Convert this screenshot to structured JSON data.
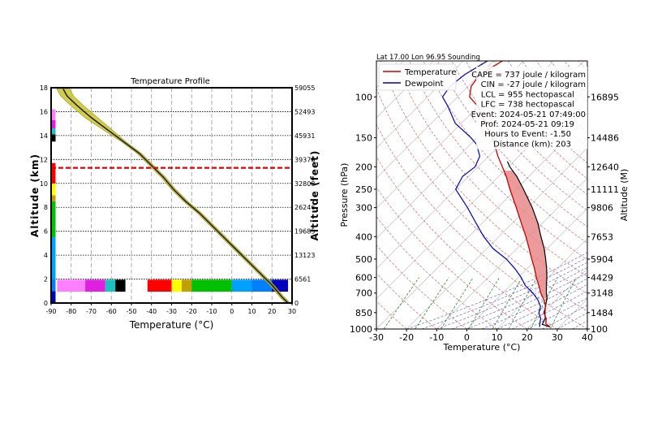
{
  "colors": {
    "temperature": "#cc0000",
    "dewpoint": "#0000cc",
    "cape_fill": "#e88a8a",
    "profile_spread": "#c8c020",
    "profile_line": "#222222",
    "tropopause": "#e00000"
  },
  "chart_data": [
    {
      "type": "line",
      "title": "Temperature Profile",
      "xlabel": "Temperature (°C)",
      "ylabel": "Altitude (km)",
      "y2label": "Altitude (feet)",
      "xlim": [
        -90,
        30
      ],
      "ylim": [
        0,
        18
      ],
      "xticks": [
        -90,
        -80,
        -70,
        -60,
        -50,
        -40,
        -30,
        -20,
        -10,
        0,
        10,
        20,
        30
      ],
      "yticks": [
        0,
        2,
        4,
        6,
        8,
        10,
        12,
        14,
        16,
        18
      ],
      "y2ticks": [
        {
          "km": 0,
          "label": "0"
        },
        {
          "km": 2,
          "label": "6561"
        },
        {
          "km": 4,
          "label": "13123"
        },
        {
          "km": 6,
          "label": "19685"
        },
        {
          "km": 8,
          "label": "26246"
        },
        {
          "km": 10,
          "label": "32808"
        },
        {
          "km": 12,
          "label": "39370"
        },
        {
          "km": 14,
          "label": "45931"
        },
        {
          "km": 16,
          "label": "52493"
        },
        {
          "km": 18,
          "label": "59055"
        }
      ],
      "grid": true,
      "tropopause_km": 11.3,
      "series": [
        {
          "x": [
            28,
            25,
            20,
            14,
            8,
            2,
            -4,
            -10,
            -16,
            -23,
            -29,
            -34,
            -40,
            -46,
            -54,
            -62,
            -70,
            -77,
            -82,
            -84
          ],
          "y": [
            0,
            0.5,
            1.5,
            2.5,
            3.5,
            4.5,
            5.5,
            6.5,
            7.5,
            8.5,
            9.5,
            10.5,
            11.5,
            12.5,
            13.5,
            14.5,
            15.5,
            16.5,
            17.3,
            17.9
          ]
        }
      ],
      "color_strip": [
        {
          "from": -87,
          "to": -73,
          "color": "#ff80ff"
        },
        {
          "from": -73,
          "to": -63,
          "color": "#e020e0"
        },
        {
          "from": -63,
          "to": -58,
          "color": "#20c0c0"
        },
        {
          "from": -58,
          "to": -53,
          "color": "#000000"
        },
        {
          "from": -42,
          "to": -30,
          "color": "#ff0000"
        },
        {
          "from": -30,
          "to": -25,
          "color": "#ffff00"
        },
        {
          "from": -25,
          "to": -20,
          "color": "#c0a000"
        },
        {
          "from": -20,
          "to": 0,
          "color": "#00c000"
        },
        {
          "from": 0,
          "to": 10,
          "color": "#00a0ff"
        },
        {
          "from": 10,
          "to": 20,
          "color": "#0080ff"
        },
        {
          "from": 20,
          "to": 28,
          "color": "#0000c0"
        }
      ]
    },
    {
      "type": "line",
      "title": "Lat 17.00 Lon 96.95 Sounding",
      "xlabel": "Temperature (°C)",
      "ylabel": "Pressure (hPa)",
      "y2label": "Altitude (M)",
      "log_scale_y": true,
      "xlim": [
        -30,
        40
      ],
      "ylim": [
        1000,
        70
      ],
      "xticks": [
        -30,
        -20,
        -10,
        0,
        10,
        20,
        30,
        40
      ],
      "yticks": [
        100,
        150,
        200,
        250,
        300,
        400,
        500,
        600,
        700,
        850,
        1000
      ],
      "y2ticks": [
        {
          "p": 100,
          "label": "16895"
        },
        {
          "p": 150,
          "label": "14486"
        },
        {
          "p": 200,
          "label": "12640"
        },
        {
          "p": 250,
          "label": "11111"
        },
        {
          "p": 300,
          "label": "9806"
        },
        {
          "p": 400,
          "label": "7653"
        },
        {
          "p": 500,
          "label": "5904"
        },
        {
          "p": 600,
          "label": "4429"
        },
        {
          "p": 700,
          "label": "3148"
        },
        {
          "p": 850,
          "label": "1484"
        },
        {
          "p": 1000,
          "label": "100"
        }
      ],
      "legend": [
        "Temperature",
        "Dewpoint"
      ],
      "legend_position": "top-left",
      "annotations": [
        "CAPE = 737 joule / kilogram",
        "CIN = -27 joule / kilogram",
        "LCL = 955 hectopascal",
        "LFC = 738 hectopascal",
        "Event: 2024-05-21 07:49:00",
        "Prof: 2024-05-21 09:19",
        "Hours to Event: -1.50",
        "Distance (km): 203"
      ],
      "series": [
        {
          "name": "Temperature",
          "pressure": [
            980,
            950,
            900,
            850,
            800,
            750,
            700,
            650,
            600,
            550,
            500,
            450,
            400,
            350,
            300,
            250,
            220,
            200,
            180,
            160,
            150,
            130,
            110,
            100,
            90,
            80,
            70
          ],
          "temp": [
            27,
            24.5,
            22.8,
            20.1,
            18.7,
            16,
            12.6,
            9.5,
            6,
            2.5,
            -1.6,
            -6,
            -11,
            -17,
            -23.8,
            -32,
            -37.5,
            -42,
            -47,
            -52,
            -55,
            -62,
            -70,
            -76,
            -79,
            -80,
            -77
          ]
        },
        {
          "name": "Dewpoint",
          "pressure": [
            980,
            950,
            900,
            850,
            800,
            750,
            700,
            650,
            600,
            550,
            500,
            450,
            400,
            350,
            300,
            250,
            220,
            200,
            180,
            160,
            150,
            130,
            110,
            100,
            90,
            80,
            70
          ],
          "temp": [
            23.5,
            22.5,
            21,
            18.5,
            17,
            14,
            10,
            5,
            1,
            -4,
            -10,
            -18,
            -25,
            -32,
            -40,
            -50,
            -52,
            -51,
            -53,
            -58,
            -62,
            -72,
            -80,
            -85,
            -86,
            -85,
            -82
          ]
        },
        {
          "name": "Parcel",
          "pressure": [
            980,
            955,
            900,
            850,
            800,
            738,
            700,
            650,
            600,
            550,
            500,
            450,
            400,
            350,
            300,
            250,
            220,
            200,
            190
          ],
          "temp": [
            27,
            23.5,
            22.5,
            20.5,
            18.6,
            16.5,
            14.5,
            12,
            9.5,
            6.5,
            3,
            -1,
            -6,
            -11.5,
            -18.5,
            -27.5,
            -34,
            -39.5,
            -42
          ]
        }
      ]
    }
  ]
}
